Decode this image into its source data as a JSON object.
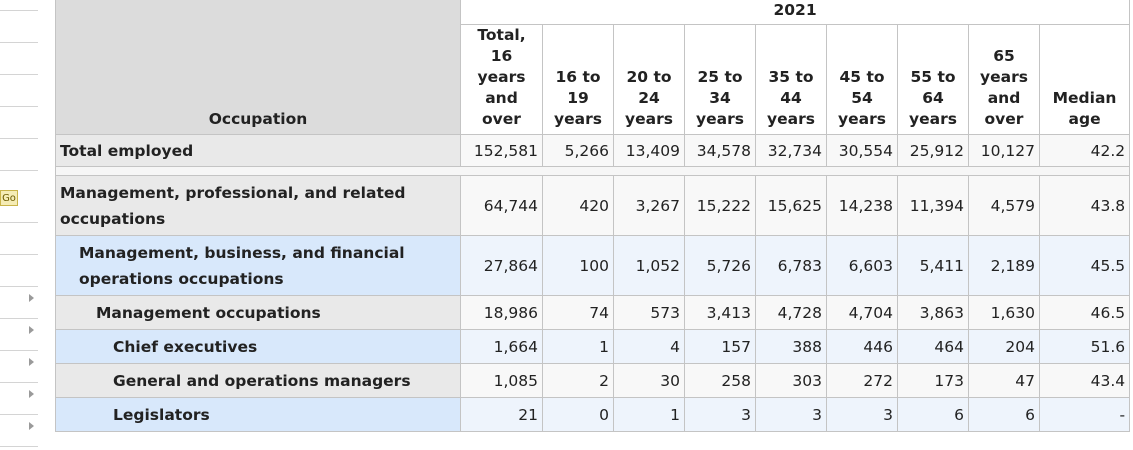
{
  "sidebar": {
    "go_label": "Go"
  },
  "table": {
    "year": "2021",
    "occupation_header": "Occupation",
    "columns": [
      "Total,\n16\nyears\nand\nover",
      "16 to\n19\nyears",
      "20 to\n24\nyears",
      "25 to\n34\nyears",
      "35 to\n44\nyears",
      "45 to\n54\nyears",
      "55 to\n64\nyears",
      "65\nyears\nand\nover",
      "Median\nage"
    ],
    "rows": [
      {
        "label": "Total employed",
        "values": [
          "152,581",
          "5,266",
          "13,409",
          "34,578",
          "32,734",
          "30,554",
          "25,912",
          "10,127",
          "42.2"
        ]
      },
      {
        "label": "Management, professional, and related occupations",
        "values": [
          "64,744",
          "420",
          "3,267",
          "15,222",
          "15,625",
          "14,238",
          "11,394",
          "4,579",
          "43.8"
        ]
      },
      {
        "label": "Management, business, and financial operations occupations",
        "values": [
          "27,864",
          "100",
          "1,052",
          "5,726",
          "6,783",
          "6,603",
          "5,411",
          "2,189",
          "45.5"
        ]
      },
      {
        "label": "Management occupations",
        "values": [
          "18,986",
          "74",
          "573",
          "3,413",
          "4,728",
          "4,704",
          "3,863",
          "1,630",
          "46.5"
        ]
      },
      {
        "label": "Chief executives",
        "values": [
          "1,664",
          "1",
          "4",
          "157",
          "388",
          "446",
          "464",
          "204",
          "51.6"
        ]
      },
      {
        "label": "General and operations managers",
        "values": [
          "1,085",
          "2",
          "30",
          "258",
          "303",
          "272",
          "173",
          "47",
          "43.4"
        ]
      },
      {
        "label": "Legislators",
        "values": [
          "21",
          "0",
          "1",
          "3",
          "3",
          "3",
          "6",
          "6",
          "-"
        ]
      }
    ]
  }
}
